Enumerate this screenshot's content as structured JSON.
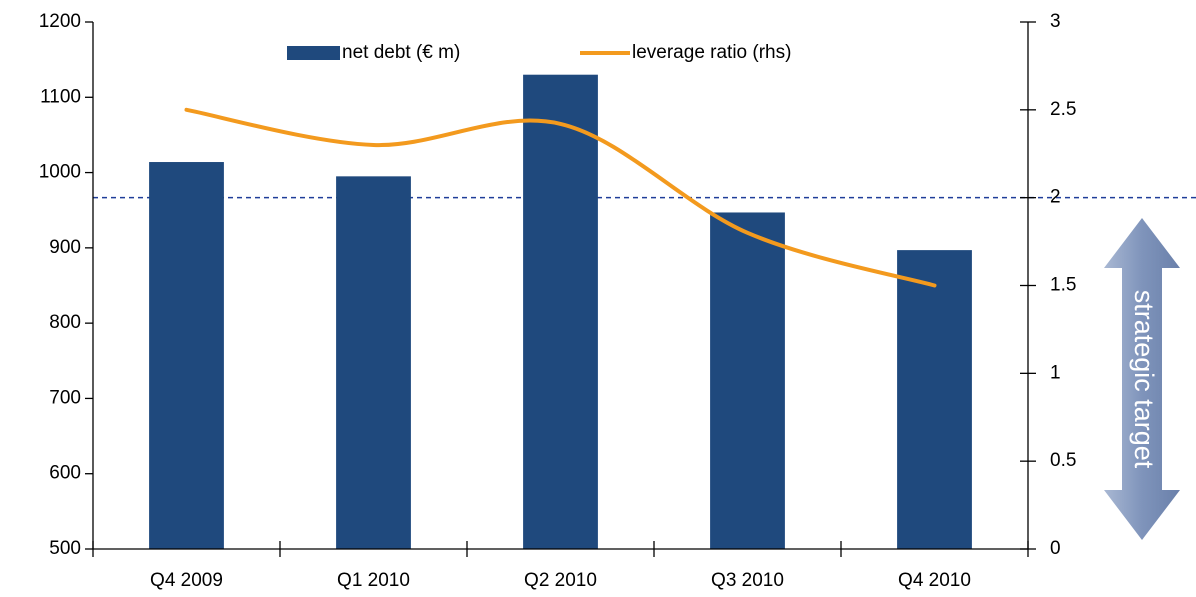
{
  "chart_data": {
    "type": "bar",
    "categories": [
      "Q4 2009",
      "Q1 2010",
      "Q2 2010",
      "Q3 2010",
      "Q4 2010"
    ],
    "series": [
      {
        "name": "net debt (€ m)",
        "type": "bar",
        "color": "#1f497d",
        "values": [
          1014,
          995,
          1130,
          947,
          897
        ]
      },
      {
        "name": "leverage ratio (rhs)",
        "type": "line",
        "axis": "y2",
        "color": "#f39a1e",
        "values": [
          2.5,
          2.3,
          2.42,
          1.8,
          1.5
        ]
      }
    ],
    "ylim": [
      500,
      1200
    ],
    "yticks": [
      500,
      600,
      700,
      800,
      900,
      1000,
      1100,
      1200
    ],
    "y2lim": [
      0,
      3
    ],
    "y2ticks": [
      0,
      0.5,
      1,
      1.5,
      2,
      2.5,
      3
    ],
    "reference_line": {
      "value": 2,
      "axis": "y2",
      "color": "#1f3d99"
    },
    "annotation": "strategic target",
    "legend": "top"
  }
}
